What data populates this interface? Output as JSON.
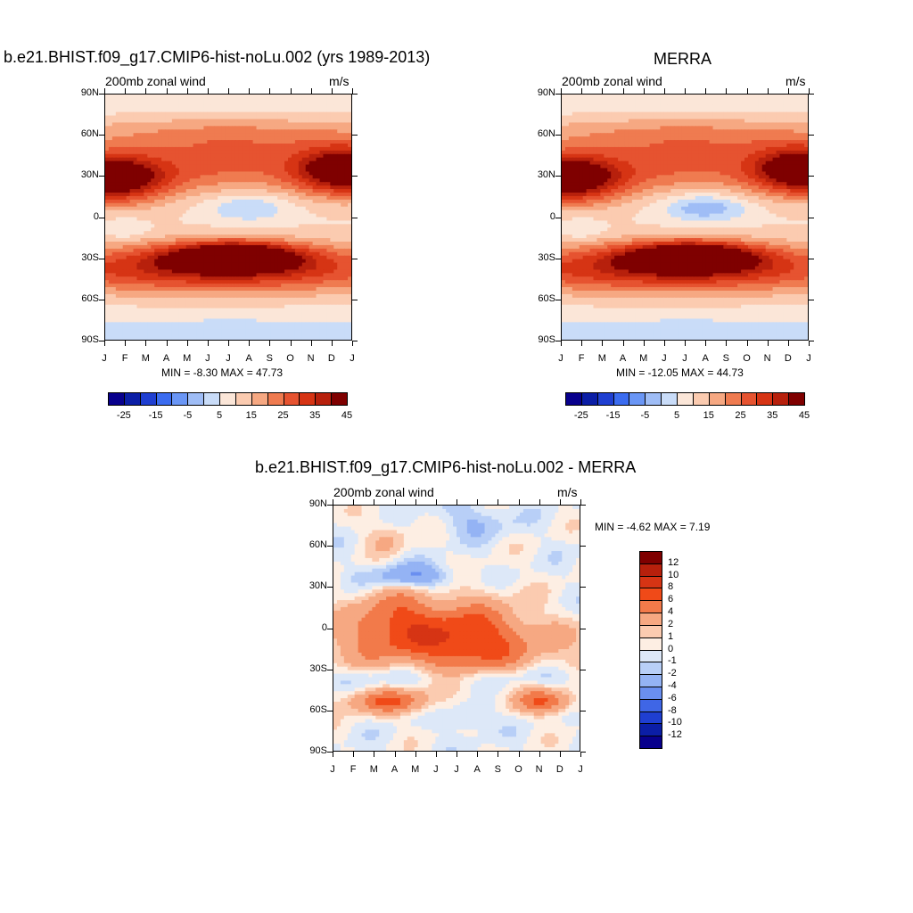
{
  "figure": {
    "panel1_title": "b.e21.BHIST.f09_g17.CMIP6-hist-noLu.002 (yrs 1989-2013)",
    "panel2_title": "MERRA",
    "panel3_title": "b.e21.BHIST.f09_g17.CMIP6-hist-noLu.002 - MERRA",
    "subtitle_left": "200mb zonal wind",
    "subtitle_right": "m/s",
    "panel1_stats": "MIN =  -8.30 MAX =  47.73",
    "panel2_stats": "MIN = -12.05 MAX =  44.73",
    "panel3_stats": "MIN =  -4.62 MAX =   7.19"
  },
  "chart_data": [
    {
      "type": "heatmap",
      "title": "b.e21.BHIST.f09_g17.CMIP6-hist-noLu.002 (yrs 1989-2013)",
      "subtitle": "200mb zonal wind",
      "units": "m/s",
      "x_ticks": [
        "J",
        "F",
        "M",
        "A",
        "M",
        "J",
        "J",
        "A",
        "S",
        "O",
        "N",
        "D",
        "J"
      ],
      "y_ticks": [
        "90N",
        "60N",
        "30N",
        "0",
        "30S",
        "60S",
        "90S"
      ],
      "xlim": [
        "Jan",
        "Jan"
      ],
      "ylim": [
        -90,
        90
      ],
      "min": -8.3,
      "max": 47.73,
      "colorbar_ticks": [
        -25,
        -15,
        -5,
        5,
        15,
        25,
        35,
        45
      ],
      "colorbar_colors": [
        "#08008c",
        "#0b1ea6",
        "#1f3fd1",
        "#3b6cf0",
        "#6a96f5",
        "#9fbdf6",
        "#c9dcf8",
        "#fbe6d8",
        "#fbcbb0",
        "#f6a882",
        "#ef7b50",
        "#e65330",
        "#d63414",
        "#b7200c",
        "#7f0000"
      ],
      "features": [
        {
          "name": "northern subtropical jet",
          "lat": 30,
          "peak_months": [
            "Dec",
            "Jan",
            "Feb"
          ],
          "peak": 45
        },
        {
          "name": "southern subtropical jet",
          "lat": -28,
          "peak_months": [
            "Jul"
          ],
          "peak": 47.73
        },
        {
          "name": "tropical easterlies",
          "lat": 5,
          "peak_months": [
            "Jul",
            "Aug"
          ],
          "peak": -8.3
        }
      ]
    },
    {
      "type": "heatmap",
      "title": "MERRA",
      "subtitle": "200mb zonal wind",
      "units": "m/s",
      "x_ticks": [
        "J",
        "F",
        "M",
        "A",
        "M",
        "J",
        "J",
        "A",
        "S",
        "O",
        "N",
        "D",
        "J"
      ],
      "y_ticks": [
        "90N",
        "60N",
        "30N",
        "0",
        "30S",
        "60S",
        "90S"
      ],
      "xlim": [
        "Jan",
        "Jan"
      ],
      "ylim": [
        -90,
        90
      ],
      "min": -12.05,
      "max": 44.73,
      "colorbar_ticks": [
        -25,
        -15,
        -5,
        5,
        15,
        25,
        35,
        45
      ],
      "colorbar_colors": [
        "#08008c",
        "#0b1ea6",
        "#1f3fd1",
        "#3b6cf0",
        "#6a96f5",
        "#9fbdf6",
        "#c9dcf8",
        "#fbe6d8",
        "#fbcbb0",
        "#f6a882",
        "#ef7b50",
        "#e65330",
        "#d63414",
        "#b7200c",
        "#7f0000"
      ],
      "features": [
        {
          "name": "northern subtropical jet",
          "lat": 30,
          "peak_months": [
            "Dec",
            "Jan",
            "Feb"
          ],
          "peak": 44.73
        },
        {
          "name": "southern subtropical jet",
          "lat": -28,
          "peak_months": [
            "Jul"
          ],
          "peak": 40
        },
        {
          "name": "tropical easterlies",
          "lat": 5,
          "peak_months": [
            "Jul",
            "Aug"
          ],
          "peak": -12.05
        }
      ]
    },
    {
      "type": "heatmap",
      "title": "b.e21.BHIST.f09_g17.CMIP6-hist-noLu.002 - MERRA",
      "subtitle": "200mb zonal wind",
      "units": "m/s",
      "x_ticks": [
        "J",
        "F",
        "M",
        "A",
        "M",
        "J",
        "J",
        "A",
        "S",
        "O",
        "N",
        "D",
        "J"
      ],
      "y_ticks": [
        "90N",
        "60N",
        "30N",
        "0",
        "30S",
        "60S",
        "90S"
      ],
      "xlim": [
        "Jan",
        "Jan"
      ],
      "ylim": [
        -90,
        90
      ],
      "min": -4.62,
      "max": 7.19,
      "colorbar_ticks": [
        12,
        10,
        8,
        6,
        4,
        2,
        1,
        0,
        -1,
        -2,
        -4,
        -6,
        -8,
        -10,
        -12
      ],
      "colorbar_colors": [
        "#7f0000",
        "#b7200c",
        "#d63414",
        "#f04a18",
        "#f27a4a",
        "#f6a882",
        "#fbcbb0",
        "#fdeee3",
        "#dde8f8",
        "#b8cff7",
        "#94b3f4",
        "#6a8ff0",
        "#3f66e6",
        "#1f3fd1",
        "#0b1ea6",
        "#08008c"
      ],
      "features": [
        {
          "name": "tropical positive anomaly",
          "lat_range": [
            -25,
            20
          ],
          "months": [
            "Feb",
            "Mar",
            "Apr",
            "May",
            "Jun",
            "Jul",
            "Aug",
            "Sep",
            "Oct"
          ],
          "peak": 7.19
        },
        {
          "name": "northern midlatitude negative anomaly",
          "lat": 38,
          "months": [
            "Mar",
            "Apr",
            "May",
            "Jun"
          ],
          "peak": -4.62
        },
        {
          "name": "southern midlatitude positive anomaly",
          "lat": -55,
          "months": [
            "Jan",
            "Feb",
            "Mar",
            "Nov",
            "Dec"
          ],
          "peak": 6
        }
      ]
    }
  ]
}
